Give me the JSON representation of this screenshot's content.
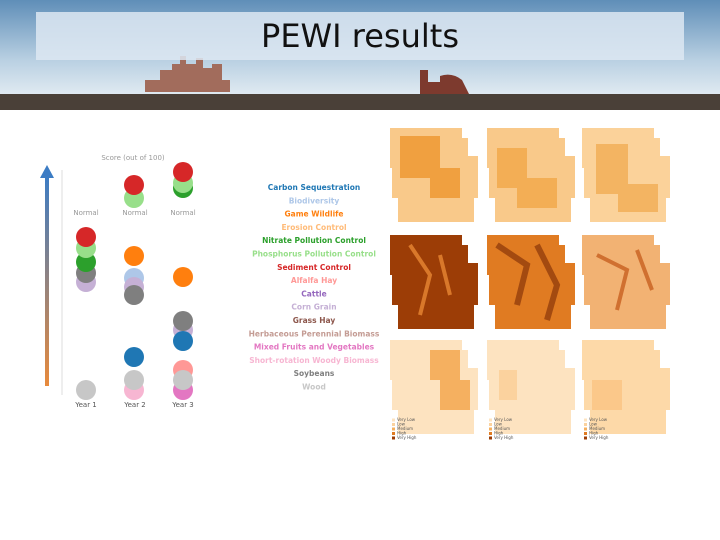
{
  "header": {
    "title": "PEWI results"
  },
  "score_chart": {
    "axis_label": "Score (out of 100)",
    "baseline_labels": [
      "Normal",
      "Normal",
      "Normal"
    ],
    "year_labels": [
      "Year 1",
      "Year 2",
      "Year 3"
    ]
  },
  "legend": {
    "items": [
      {
        "label": "Carbon Sequestration",
        "color": "#1f77b4"
      },
      {
        "label": "Biodiversity",
        "color": "#aec7e8"
      },
      {
        "label": "Game Wildlife",
        "color": "#ff7f0e"
      },
      {
        "label": "Erosion Control",
        "color": "#ffbb78"
      },
      {
        "label": "Nitrate Pollution Control",
        "color": "#2ca02c"
      },
      {
        "label": "Phosphorus Pollution Control",
        "color": "#98df8a"
      },
      {
        "label": "Sediment Control",
        "color": "#d62728"
      },
      {
        "label": "Alfalfa Hay",
        "color": "#ff9896"
      },
      {
        "label": "Cattle",
        "color": "#9467bd"
      },
      {
        "label": "Corn Grain",
        "color": "#c5b0d5"
      },
      {
        "label": "Grass Hay",
        "color": "#8c564b"
      },
      {
        "label": "Herbaceous Perennial Biomass",
        "color": "#c49c94"
      },
      {
        "label": "Mixed Fruits and Vegetables",
        "color": "#e377c2"
      },
      {
        "label": "Short-rotation Woody Biomass",
        "color": "#f7b6d2"
      },
      {
        "label": "Soybeans",
        "color": "#7f7f7f"
      },
      {
        "label": "Wood",
        "color": "#c7c7c7"
      }
    ]
  },
  "maps": {
    "bottom_legend": [
      "Very Low",
      "Low",
      "Medium",
      "High",
      "Very High"
    ]
  }
}
